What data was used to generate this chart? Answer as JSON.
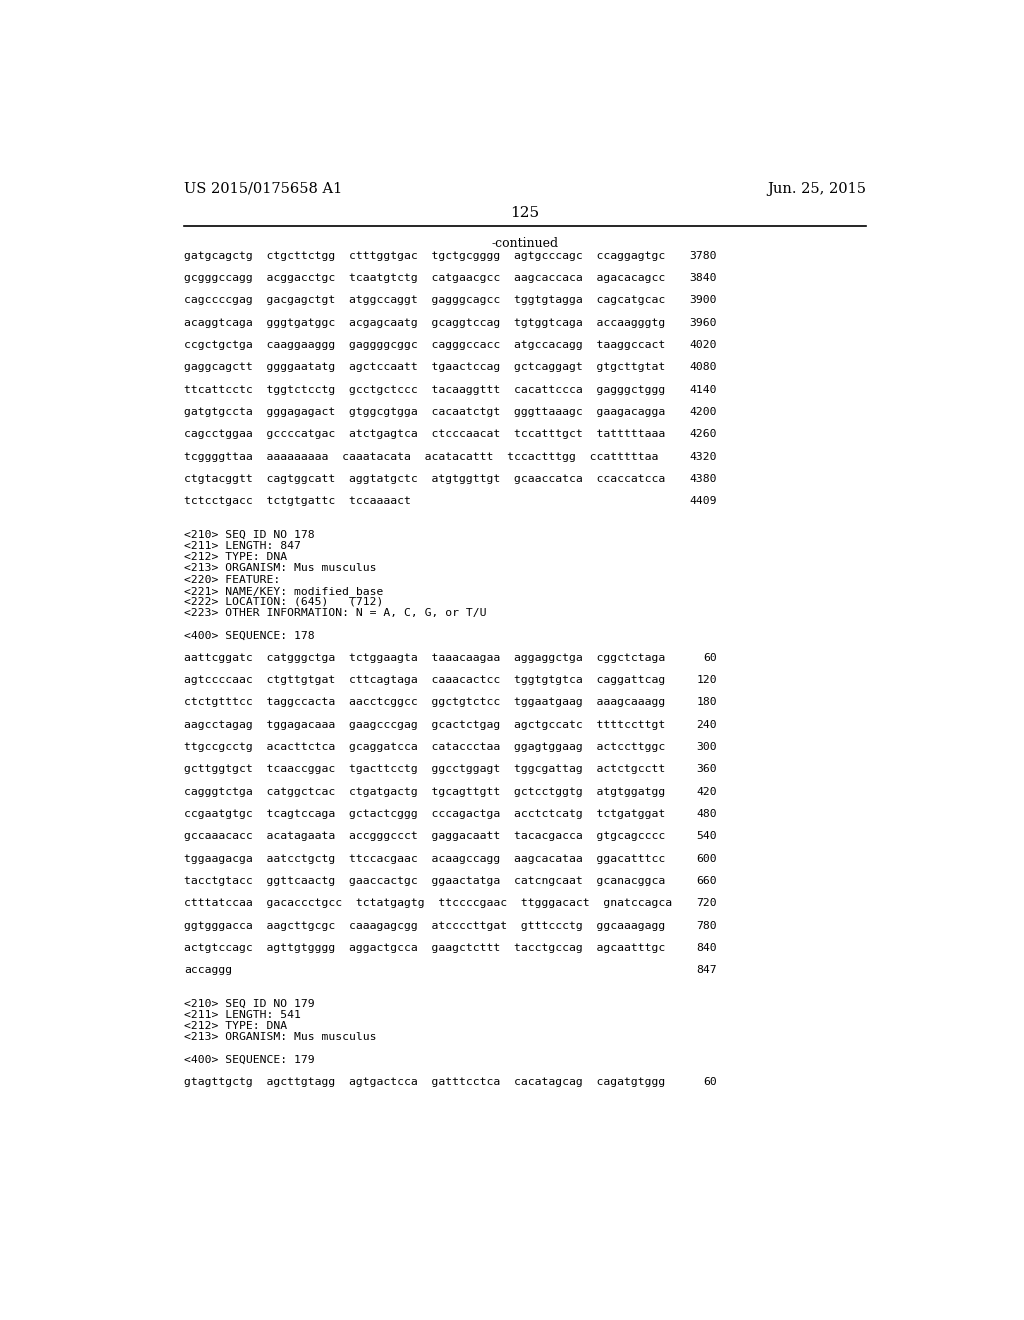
{
  "header_left": "US 2015/0175658 A1",
  "header_right": "Jun. 25, 2015",
  "page_number": "125",
  "continued_text": "-continued",
  "background_color": "#ffffff",
  "text_color": "#000000",
  "lines": [
    {
      "text": "gatgcagctg  ctgcttctgg  ctttggtgac  tgctgcgggg  agtgcccagc  ccaggagtgc",
      "num": "3780"
    },
    {
      "text": "",
      "num": ""
    },
    {
      "text": "gcgggccagg  acggacctgc  tcaatgtctg  catgaacgcc  aagcaccaca  agacacagcc",
      "num": "3840"
    },
    {
      "text": "",
      "num": ""
    },
    {
      "text": "cagccccgag  gacgagctgt  atggccaggt  gagggcagcc  tggtgtagga  cagcatgcac",
      "num": "3900"
    },
    {
      "text": "",
      "num": ""
    },
    {
      "text": "acaggtcaga  gggtgatggc  acgagcaatg  gcaggtccag  tgtggtcaga  accaagggtg",
      "num": "3960"
    },
    {
      "text": "",
      "num": ""
    },
    {
      "text": "ccgctgctga  caaggaaggg  gaggggcggc  cagggccacc  atgccacagg  taaggccact",
      "num": "4020"
    },
    {
      "text": "",
      "num": ""
    },
    {
      "text": "gaggcagctt  ggggaatatg  agctccaatt  tgaactccag  gctcaggagt  gtgcttgtat",
      "num": "4080"
    },
    {
      "text": "",
      "num": ""
    },
    {
      "text": "ttcattcctc  tggtctcctg  gcctgctccc  tacaaggttt  cacattccca  gagggctggg",
      "num": "4140"
    },
    {
      "text": "",
      "num": ""
    },
    {
      "text": "gatgtgccta  gggagagact  gtggcgtgga  cacaatctgt  gggttaaagc  gaagacagga",
      "num": "4200"
    },
    {
      "text": "",
      "num": ""
    },
    {
      "text": "cagcctggaa  gccccatgac  atctgagtca  ctcccaacat  tccatttgct  tatttttaaa",
      "num": "4260"
    },
    {
      "text": "",
      "num": ""
    },
    {
      "text": "tcggggttaa  aaaaaaaaa  caaatacata  acatacattt  tccactttgg  ccatttttaa",
      "num": "4320"
    },
    {
      "text": "",
      "num": ""
    },
    {
      "text": "ctgtacggtt  cagtggcatt  aggtatgctc  atgtggttgt  gcaaccatca  ccaccatcca",
      "num": "4380"
    },
    {
      "text": "",
      "num": ""
    },
    {
      "text": "tctcctgacc  tctgtgattc  tccaaaact",
      "num": "4409"
    },
    {
      "text": "",
      "num": ""
    },
    {
      "text": "",
      "num": ""
    },
    {
      "text": "<210> SEQ ID NO 178",
      "num": ""
    },
    {
      "text": "<211> LENGTH: 847",
      "num": ""
    },
    {
      "text": "<212> TYPE: DNA",
      "num": ""
    },
    {
      "text": "<213> ORGANISM: Mus musculus",
      "num": ""
    },
    {
      "text": "<220> FEATURE:",
      "num": ""
    },
    {
      "text": "<221> NAME/KEY: modified_base",
      "num": ""
    },
    {
      "text": "<222> LOCATION: (645)   (712)",
      "num": ""
    },
    {
      "text": "<223> OTHER INFORMATION: N = A, C, G, or T/U",
      "num": ""
    },
    {
      "text": "",
      "num": ""
    },
    {
      "text": "<400> SEQUENCE: 178",
      "num": ""
    },
    {
      "text": "",
      "num": ""
    },
    {
      "text": "aattcggatc  catgggctga  tctggaagta  taaacaagaa  aggaggctga  cggctctaga",
      "num": "60"
    },
    {
      "text": "",
      "num": ""
    },
    {
      "text": "agtccccaac  ctgttgtgat  cttcagtaga  caaacactcc  tggtgtgtca  caggattcag",
      "num": "120"
    },
    {
      "text": "",
      "num": ""
    },
    {
      "text": "ctctgtttcc  taggccacta  aacctcggcc  ggctgtctcc  tggaatgaag  aaagcaaagg",
      "num": "180"
    },
    {
      "text": "",
      "num": ""
    },
    {
      "text": "aagcctagag  tggagacaaa  gaagcccgag  gcactctgag  agctgccatc  ttttccttgt",
      "num": "240"
    },
    {
      "text": "",
      "num": ""
    },
    {
      "text": "ttgccgcctg  acacttctca  gcaggatcca  cataccctaa  ggagtggaag  actccttggc",
      "num": "300"
    },
    {
      "text": "",
      "num": ""
    },
    {
      "text": "gcttggtgct  tcaaccggac  tgacttcctg  ggcctggagt  tggcgattag  actctgcctt",
      "num": "360"
    },
    {
      "text": "",
      "num": ""
    },
    {
      "text": "cagggtctga  catggctcac  ctgatgactg  tgcagttgtt  gctcctggtg  atgtggatgg",
      "num": "420"
    },
    {
      "text": "",
      "num": ""
    },
    {
      "text": "ccgaatgtgc  tcagtccaga  gctactcggg  cccagactga  acctctcatg  tctgatggat",
      "num": "480"
    },
    {
      "text": "",
      "num": ""
    },
    {
      "text": "gccaaacacc  acatagaata  accgggccct  gaggacaatt  tacacgacca  gtgcagcccc",
      "num": "540"
    },
    {
      "text": "",
      "num": ""
    },
    {
      "text": "tggaagacga  aatcctgctg  ttccacgaac  acaagccagg  aagcacataa  ggacatttcc",
      "num": "600"
    },
    {
      "text": "",
      "num": ""
    },
    {
      "text": "tacctgtacc  ggttcaactg  gaaccactgc  ggaactatga  catcngcaat  gcanacggca",
      "num": "660"
    },
    {
      "text": "",
      "num": ""
    },
    {
      "text": "ctttatccaa  gacaccctgcc  tctatgagtg  ttccccgaac  ttgggacact  gnatccagca",
      "num": "720"
    },
    {
      "text": "",
      "num": ""
    },
    {
      "text": "ggtgggacca  aagcttgcgc  caaagagcgg  atccccttgat  gtttccctg  ggcaaagagg",
      "num": "780"
    },
    {
      "text": "",
      "num": ""
    },
    {
      "text": "actgtccagc  agttgtgggg  aggactgcca  gaagctcttt  tacctgccag  agcaatttgc",
      "num": "840"
    },
    {
      "text": "",
      "num": ""
    },
    {
      "text": "accaggg",
      "num": "847"
    },
    {
      "text": "",
      "num": ""
    },
    {
      "text": "",
      "num": ""
    },
    {
      "text": "<210> SEQ ID NO 179",
      "num": ""
    },
    {
      "text": "<211> LENGTH: 541",
      "num": ""
    },
    {
      "text": "<212> TYPE: DNA",
      "num": ""
    },
    {
      "text": "<213> ORGANISM: Mus musculus",
      "num": ""
    },
    {
      "text": "",
      "num": ""
    },
    {
      "text": "<400> SEQUENCE: 179",
      "num": ""
    },
    {
      "text": "",
      "num": ""
    },
    {
      "text": "gtagttgctg  agcttgtagg  agtgactcca  gatttcctca  cacatagcag  cagatgtggg",
      "num": "60"
    }
  ]
}
